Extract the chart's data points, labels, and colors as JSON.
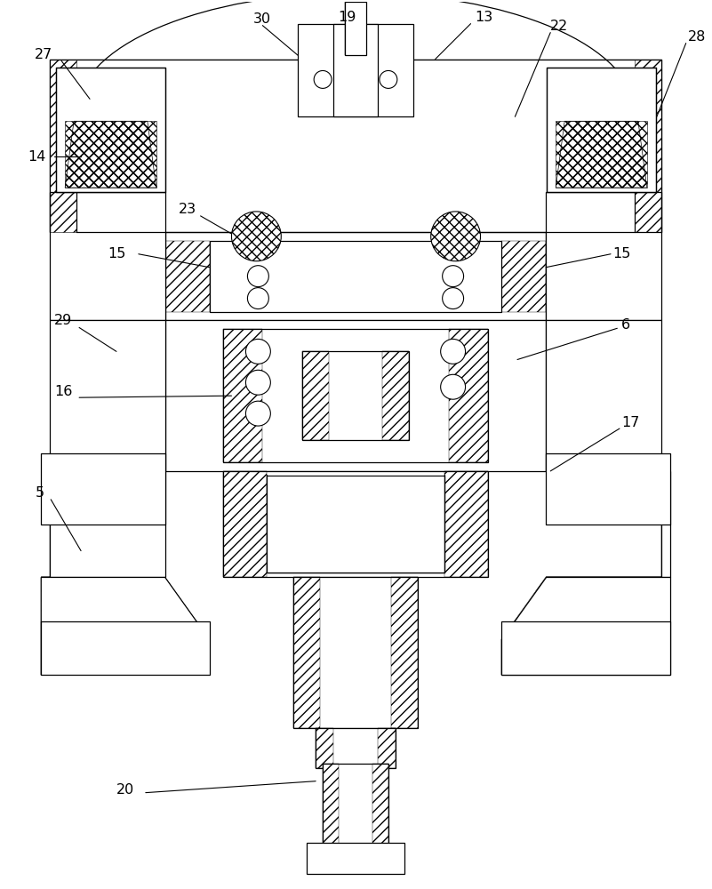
{
  "bg_color": "#ffffff",
  "lw": 0.9,
  "fig_width": 8.01,
  "fig_height": 10.0,
  "dpi": 100
}
